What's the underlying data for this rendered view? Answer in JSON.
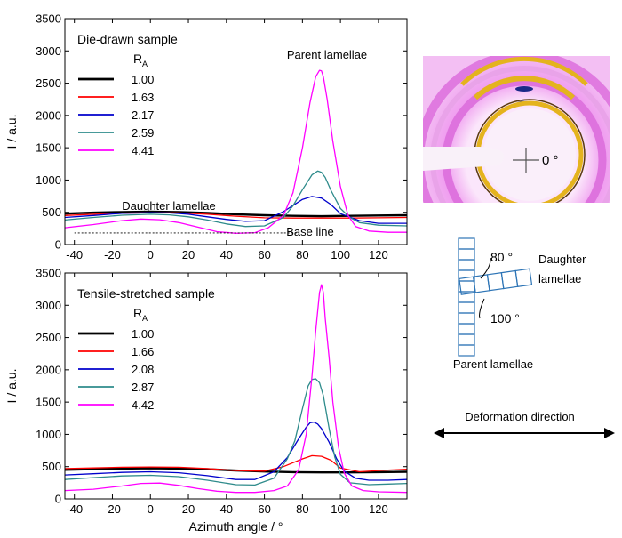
{
  "chart_data": [
    {
      "type": "line",
      "title": "Die-drawn sample",
      "ylabel": "I / a.u.",
      "xlabel": "",
      "xlim": [
        -45,
        135
      ],
      "ylim": [
        0,
        3500
      ],
      "xticks": [
        "-40",
        "-20",
        "0",
        "20",
        "40",
        "60",
        "80",
        "100",
        "120"
      ],
      "yticks": [
        "0",
        "500",
        "1000",
        "1500",
        "2000",
        "2500",
        "3000",
        "3500"
      ],
      "legend_title": "R",
      "legend_title_sub": "A",
      "legend_position": "top-left",
      "annotations": {
        "peak": "Parent lamellae",
        "shoulder": "Daughter lamellae",
        "baseline": "Base line"
      },
      "baseline_value": 180,
      "series": [
        {
          "name": "1.00",
          "color": "#000000",
          "width": 2.4,
          "x": [
            -45,
            -30,
            -15,
            0,
            15,
            30,
            45,
            60,
            75,
            90,
            105,
            120,
            135
          ],
          "y": [
            480,
            495,
            505,
            510,
            505,
            490,
            470,
            455,
            445,
            440,
            445,
            450,
            455
          ]
        },
        {
          "name": "1.63",
          "color": "#ff0000",
          "width": 1.3,
          "x": [
            -45,
            -30,
            -15,
            0,
            15,
            30,
            45,
            60,
            75,
            90,
            105,
            120,
            135
          ],
          "y": [
            450,
            470,
            485,
            495,
            490,
            470,
            440,
            415,
            410,
            410,
            410,
            415,
            420
          ]
        },
        {
          "name": "2.17",
          "color": "#0000cc",
          "width": 1.3,
          "x": [
            -45,
            -30,
            -15,
            0,
            10,
            20,
            30,
            40,
            50,
            60,
            70,
            80,
            85,
            90,
            95,
            100,
            110,
            120,
            135
          ],
          "y": [
            420,
            450,
            485,
            495,
            490,
            470,
            430,
            390,
            360,
            370,
            510,
            700,
            745,
            720,
            620,
            480,
            370,
            330,
            330
          ]
        },
        {
          "name": "2.59",
          "color": "#2e8b8b",
          "width": 1.3,
          "x": [
            -45,
            -30,
            -15,
            0,
            10,
            20,
            30,
            40,
            50,
            60,
            70,
            75,
            80,
            85,
            88,
            90,
            92,
            95,
            100,
            105,
            110,
            120,
            135
          ],
          "y": [
            380,
            420,
            455,
            470,
            460,
            430,
            380,
            320,
            280,
            290,
            420,
            600,
            850,
            1080,
            1140,
            1120,
            1040,
            840,
            560,
            420,
            340,
            300,
            290
          ]
        },
        {
          "name": "4.41",
          "color": "#ff00ff",
          "width": 1.3,
          "x": [
            -45,
            -30,
            -15,
            -5,
            5,
            15,
            25,
            35,
            45,
            55,
            62,
            70,
            75,
            80,
            84,
            87,
            89,
            90,
            91,
            93,
            96,
            100,
            104,
            108,
            115,
            125,
            135
          ],
          "y": [
            260,
            310,
            370,
            395,
            385,
            340,
            270,
            200,
            175,
            185,
            260,
            450,
            800,
            1500,
            2200,
            2600,
            2700,
            2690,
            2600,
            2250,
            1600,
            900,
            450,
            280,
            210,
            190,
            190
          ]
        }
      ]
    },
    {
      "type": "line",
      "title": "Tensile-stretched sample",
      "ylabel": "I / a.u.",
      "xlabel": "Azimuth angle / °",
      "xlim": [
        -45,
        135
      ],
      "ylim": [
        0,
        3500
      ],
      "xticks": [
        "-40",
        "-20",
        "0",
        "20",
        "40",
        "60",
        "80",
        "100",
        "120"
      ],
      "yticks": [
        "0",
        "500",
        "1000",
        "1500",
        "2000",
        "2500",
        "3000",
        "3500"
      ],
      "legend_title": "R",
      "legend_title_sub": "A",
      "legend_position": "top-left",
      "series": [
        {
          "name": "1.00",
          "color": "#000000",
          "width": 2.4,
          "x": [
            -45,
            -30,
            -15,
            0,
            15,
            30,
            45,
            60,
            75,
            90,
            105,
            120,
            135
          ],
          "y": [
            450,
            460,
            470,
            475,
            470,
            460,
            440,
            425,
            415,
            410,
            410,
            415,
            420
          ]
        },
        {
          "name": "1.66",
          "color": "#ff0000",
          "width": 1.3,
          "x": [
            -45,
            -30,
            -15,
            0,
            15,
            30,
            45,
            60,
            70,
            80,
            85,
            90,
            95,
            100,
            110,
            120,
            135
          ],
          "y": [
            470,
            480,
            490,
            495,
            490,
            470,
            440,
            430,
            500,
            620,
            670,
            660,
            600,
            480,
            420,
            440,
            460
          ]
        },
        {
          "name": "2.08",
          "color": "#0000cc",
          "width": 1.3,
          "x": [
            -45,
            -30,
            -15,
            0,
            15,
            30,
            45,
            55,
            65,
            72,
            78,
            82,
            84,
            86,
            88,
            90,
            94,
            98,
            102,
            108,
            115,
            125,
            135
          ],
          "y": [
            370,
            390,
            410,
            420,
            405,
            360,
            300,
            300,
            420,
            640,
            930,
            1110,
            1180,
            1190,
            1160,
            1090,
            880,
            620,
            430,
            320,
            290,
            290,
            300
          ]
        },
        {
          "name": "2.87",
          "color": "#2e8b8b",
          "width": 1.3,
          "x": [
            -45,
            -30,
            -15,
            0,
            15,
            30,
            45,
            55,
            65,
            72,
            76,
            80,
            83,
            85,
            87,
            89,
            91,
            94,
            97,
            100,
            105,
            115,
            125,
            135
          ],
          "y": [
            300,
            330,
            355,
            365,
            345,
            290,
            220,
            215,
            320,
            620,
            900,
            1400,
            1750,
            1850,
            1860,
            1800,
            1600,
            1100,
            650,
            380,
            250,
            220,
            230,
            240
          ]
        },
        {
          "name": "4.42",
          "color": "#ff00ff",
          "width": 1.3,
          "x": [
            -45,
            -30,
            -15,
            -5,
            5,
            15,
            25,
            35,
            45,
            55,
            65,
            72,
            78,
            82,
            85,
            87,
            89,
            90,
            91,
            92,
            94,
            96,
            99,
            102,
            106,
            112,
            120,
            135
          ],
          "y": [
            130,
            150,
            200,
            240,
            245,
            210,
            160,
            120,
            100,
            100,
            130,
            200,
            450,
            1000,
            1900,
            2600,
            3200,
            3320,
            3200,
            2800,
            2200,
            1500,
            800,
            400,
            200,
            130,
            110,
            100
          ]
        }
      ]
    }
  ],
  "saxs_image": {
    "angle_label": "0 °",
    "colors": {
      "background": "#f3bff3",
      "halo": "#e37ee3",
      "ring": "#e4b31e",
      "beam": "#f7ecf7"
    }
  },
  "schematic": {
    "daughter_label_line1": "Daughter",
    "daughter_label_line2": "lamellae",
    "parent_label": "Parent lamellae",
    "angle_top": "80 °",
    "angle_bottom": "100 °",
    "deformation_label": "Deformation direction",
    "stroke_color": "#2e75b6"
  }
}
